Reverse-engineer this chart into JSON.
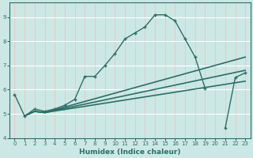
{
  "xlabel": "Humidex (Indice chaleur)",
  "background_color": "#cce8e4",
  "grid_color_white": "#ffffff",
  "grid_color_pink": "#e8c8c8",
  "line_color": "#2a7068",
  "xlim": [
    -0.5,
    23.5
  ],
  "ylim": [
    4.0,
    9.6
  ],
  "yticks": [
    4,
    5,
    6,
    7,
    8,
    9
  ],
  "xticks": [
    0,
    1,
    2,
    3,
    4,
    5,
    6,
    7,
    8,
    9,
    10,
    11,
    12,
    13,
    14,
    15,
    16,
    17,
    18,
    19,
    20,
    21,
    22,
    23
  ],
  "line1_x": [
    0,
    1,
    2,
    3,
    4,
    5,
    6,
    7,
    8,
    9,
    10,
    11,
    12,
    13,
    14,
    15,
    16,
    17,
    18,
    19,
    21,
    22,
    23
  ],
  "line1_y": [
    5.8,
    4.9,
    5.2,
    5.1,
    5.2,
    5.35,
    5.6,
    6.55,
    6.55,
    7.0,
    7.5,
    8.1,
    8.35,
    8.6,
    9.1,
    9.1,
    8.85,
    8.1,
    7.35,
    6.05,
    4.4,
    6.5,
    6.7
  ],
  "line2_x": [
    1,
    2,
    3,
    23
  ],
  "line2_y": [
    4.92,
    5.1,
    5.05,
    7.35
  ],
  "line3_x": [
    1,
    2,
    3,
    23
  ],
  "line3_y": [
    4.92,
    5.1,
    5.05,
    6.8
  ],
  "line4_x": [
    1,
    2,
    3,
    23
  ],
  "line4_y": [
    4.92,
    5.1,
    5.05,
    6.35
  ]
}
